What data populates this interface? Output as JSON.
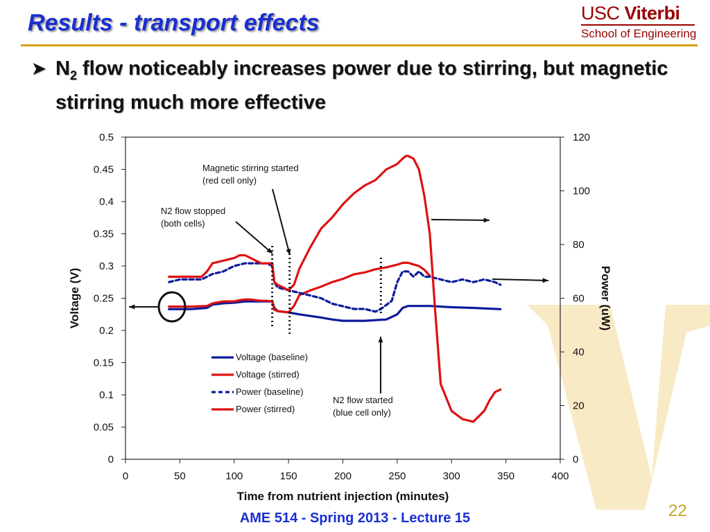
{
  "slide": {
    "title": "Results - transport effects",
    "bullet_pre": "N",
    "bullet_sub": "2",
    "bullet_post": " flow noticeably increases power due to stirring, but magnetic stirring much more effective",
    "footer": "AME 514 - Spring 2013 - Lecture 15",
    "page_number": "22",
    "logo_usc": "USC",
    "logo_viterbi": "Viterbi",
    "logo_school": "School of Engineering",
    "accent_color": "#1a2fd0",
    "brand_color": "#990000",
    "rule_color": "#d4a017"
  },
  "chart_data": {
    "type": "line",
    "xlabel": "Time from nutrient injection (minutes)",
    "ylabel": "Voltage (V)",
    "y2label": "Power (uW)",
    "xlim": [
      0,
      400
    ],
    "ylim": [
      0,
      0.5
    ],
    "y2lim": [
      0,
      120
    ],
    "x_ticks": [
      "0",
      "50",
      "100",
      "150",
      "200",
      "250",
      "300",
      "350",
      "400"
    ],
    "y_ticks": [
      "0",
      "0.05",
      "0.1",
      "0.15",
      "0.2",
      "0.25",
      "0.3",
      "0.35",
      "0.4",
      "0.45",
      "0.5"
    ],
    "y2_ticks": [
      "0",
      "20",
      "40",
      "60",
      "80",
      "100",
      "120"
    ],
    "grid": false,
    "legend_position": "center-left",
    "series": [
      {
        "name": "Voltage (baseline)",
        "axis": "left",
        "color": "#0a1a9c",
        "dash": false,
        "x": [
          40,
          60,
          75,
          80,
          90,
          100,
          110,
          115,
          120,
          125,
          130,
          135,
          137,
          140,
          150,
          160,
          180,
          190,
          200,
          220,
          240,
          250,
          255,
          260,
          280,
          300,
          320,
          345
        ],
        "y": [
          0.233,
          0.233,
          0.235,
          0.24,
          0.242,
          0.243,
          0.245,
          0.245,
          0.245,
          0.245,
          0.245,
          0.245,
          0.235,
          0.23,
          0.228,
          0.225,
          0.22,
          0.217,
          0.215,
          0.215,
          0.217,
          0.225,
          0.235,
          0.238,
          0.238,
          0.236,
          0.235,
          0.233
        ]
      },
      {
        "name": "Voltage (stirred)",
        "axis": "left",
        "color": "#dd1111",
        "dash": false,
        "x": [
          40,
          60,
          75,
          80,
          90,
          100,
          105,
          110,
          115,
          120,
          125,
          130,
          135,
          137,
          140,
          150,
          155,
          160,
          170,
          180,
          190,
          200,
          210,
          220,
          230,
          240,
          250,
          255,
          260,
          270,
          275,
          280
        ],
        "y": [
          0.237,
          0.237,
          0.238,
          0.242,
          0.245,
          0.245,
          0.247,
          0.248,
          0.248,
          0.247,
          0.246,
          0.246,
          0.245,
          0.232,
          0.23,
          0.228,
          0.238,
          0.255,
          0.262,
          0.268,
          0.275,
          0.28,
          0.287,
          0.29,
          0.295,
          0.298,
          0.302,
          0.305,
          0.305,
          0.3,
          0.294,
          0.285
        ]
      },
      {
        "name": "Power (baseline)",
        "axis": "right",
        "color": "#0a1a9c",
        "dash": true,
        "x": [
          40,
          50,
          70,
          80,
          90,
          100,
          110,
          120,
          130,
          135,
          137,
          140,
          150,
          160,
          170,
          180,
          190,
          200,
          210,
          220,
          230,
          235,
          245,
          250,
          255,
          260,
          265,
          270,
          275,
          280,
          290,
          300,
          310,
          320,
          330,
          340,
          345
        ],
        "y": [
          66,
          67,
          67,
          69,
          70,
          72,
          73,
          73,
          73,
          72,
          66,
          64,
          63,
          62,
          61,
          60,
          58,
          57,
          56,
          56,
          55,
          56,
          59,
          66,
          70,
          70,
          68,
          70,
          68,
          68,
          67,
          66,
          67,
          66,
          67,
          66,
          65
        ]
      },
      {
        "name": "Power (stirred)",
        "axis": "right",
        "color": "#dd1111",
        "dash": false,
        "x": [
          40,
          50,
          70,
          75,
          80,
          90,
          100,
          105,
          110,
          115,
          120,
          125,
          130,
          135,
          137,
          140,
          150,
          155,
          160,
          170,
          180,
          190,
          200,
          210,
          220,
          230,
          240,
          250,
          255,
          258,
          260,
          265,
          270,
          275,
          280,
          285,
          290,
          300,
          310,
          320,
          330,
          335,
          340,
          345
        ],
        "y": [
          68,
          68,
          68,
          70,
          73,
          74,
          75,
          76,
          76,
          75,
          74,
          73,
          73,
          73,
          66,
          65,
          63,
          65,
          71,
          79,
          86,
          90,
          95,
          99,
          102,
          104,
          108,
          110,
          112,
          113,
          113,
          112,
          108,
          98,
          84,
          55,
          28,
          18,
          15,
          14,
          18,
          22,
          25,
          26
        ]
      }
    ],
    "annotations": [
      {
        "text_lines": [
          "Magnetic stirring started",
          "(red cell only)"
        ]
      },
      {
        "text_lines": [
          "N2 flow stopped",
          "(both cells)"
        ]
      },
      {
        "text_lines": [
          "N2 flow started",
          "(blue cell only)"
        ]
      }
    ]
  }
}
